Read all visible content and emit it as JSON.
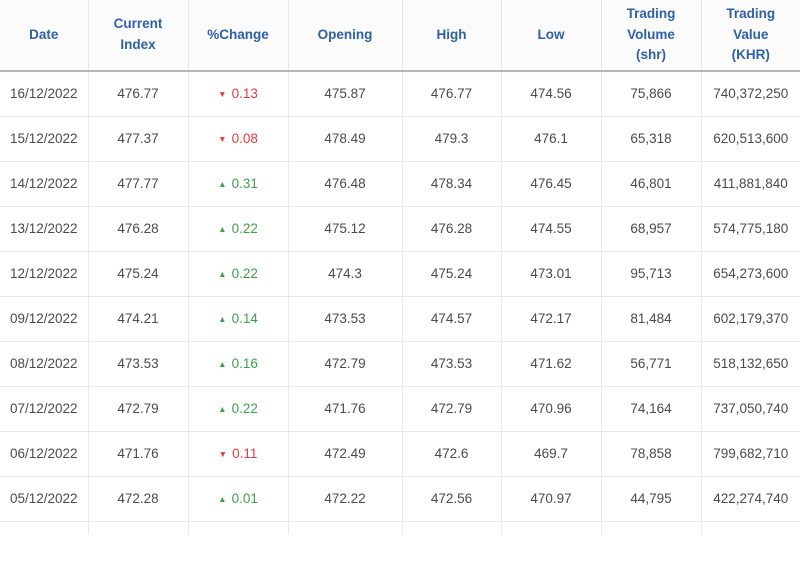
{
  "chart_data": {
    "type": "table",
    "columns": [
      "Date",
      "Current Index",
      "%Change",
      "Opening",
      "High",
      "Low",
      "Trading Volume (shr)",
      "Trading Value (KHR)"
    ],
    "rows": [
      {
        "date": "16/12/2022",
        "current_index": "476.77",
        "change": "0.13",
        "direction": "down",
        "opening": "475.87",
        "high": "476.77",
        "low": "474.56",
        "trading_volume": "75,866",
        "trading_value": "740,372,250"
      },
      {
        "date": "15/12/2022",
        "current_index": "477.37",
        "change": "0.08",
        "direction": "down",
        "opening": "478.49",
        "high": "479.3",
        "low": "476.1",
        "trading_volume": "65,318",
        "trading_value": "620,513,600"
      },
      {
        "date": "14/12/2022",
        "current_index": "477.77",
        "change": "0.31",
        "direction": "up",
        "opening": "476.48",
        "high": "478.34",
        "low": "476.45",
        "trading_volume": "46,801",
        "trading_value": "411,881,840"
      },
      {
        "date": "13/12/2022",
        "current_index": "476.28",
        "change": "0.22",
        "direction": "up",
        "opening": "475.12",
        "high": "476.28",
        "low": "474.55",
        "trading_volume": "68,957",
        "trading_value": "574,775,180"
      },
      {
        "date": "12/12/2022",
        "current_index": "475.24",
        "change": "0.22",
        "direction": "up",
        "opening": "474.3",
        "high": "475.24",
        "low": "473.01",
        "trading_volume": "95,713",
        "trading_value": "654,273,600"
      },
      {
        "date": "09/12/2022",
        "current_index": "474.21",
        "change": "0.14",
        "direction": "up",
        "opening": "473.53",
        "high": "474.57",
        "low": "472.17",
        "trading_volume": "81,484",
        "trading_value": "602,179,370"
      },
      {
        "date": "08/12/2022",
        "current_index": "473.53",
        "change": "0.16",
        "direction": "up",
        "opening": "472.79",
        "high": "473.53",
        "low": "471.62",
        "trading_volume": "56,771",
        "trading_value": "518,132,650"
      },
      {
        "date": "07/12/2022",
        "current_index": "472.79",
        "change": "0.22",
        "direction": "up",
        "opening": "471.76",
        "high": "472.79",
        "low": "470.96",
        "trading_volume": "74,164",
        "trading_value": "737,050,740"
      },
      {
        "date": "06/12/2022",
        "current_index": "471.76",
        "change": "0.11",
        "direction": "down",
        "opening": "472.49",
        "high": "472.6",
        "low": "469.7",
        "trading_volume": "78,858",
        "trading_value": "799,682,710"
      },
      {
        "date": "05/12/2022",
        "current_index": "472.28",
        "change": "0.01",
        "direction": "up",
        "opening": "472.22",
        "high": "472.56",
        "low": "470.97",
        "trading_volume": "44,795",
        "trading_value": "422,274,740"
      }
    ]
  },
  "icons": {
    "up_arrow": "▲",
    "down_arrow": "▼"
  },
  "colors": {
    "header_text": "#2f5fa8",
    "positive": "#3ba24a",
    "negative": "#e8393d",
    "header_border": "#aeb6c0",
    "grid_line": "#e9e9e9"
  }
}
